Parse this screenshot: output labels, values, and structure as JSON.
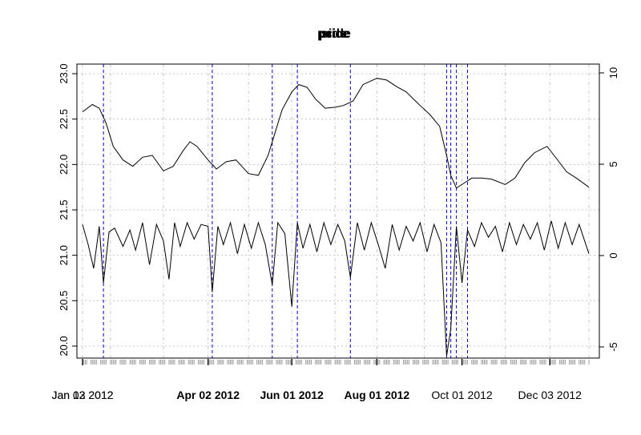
{
  "chart_data": {
    "type": "line",
    "title": "pcide",
    "title_overlap": [
      "price",
      "side"
    ],
    "xlabel": "",
    "ylabel": "",
    "xlim": [
      "2012-01-03",
      "2012-12-31"
    ],
    "ylim_left": [
      20.0,
      23.0
    ],
    "ylim_right": [
      -6.0,
      10.0
    ],
    "y_ticks_left": [
      "20.0",
      "20.5",
      "21.0",
      "21.5",
      "22.0",
      "22.5",
      "23.0"
    ],
    "y_ticks_right": [
      "-5",
      "0",
      "5",
      "10"
    ],
    "grid": true,
    "colors": {
      "series": "#000000",
      "vlines": "#0000cc",
      "grid": "#c8c8c8",
      "minor_ticks": "#a0a0a0"
    },
    "x_tick_labels": [
      {
        "text": "Jan 12 2012",
        "overlap": "Jan 03 2012",
        "date": "2012-01-03",
        "bold": false
      },
      {
        "text": "Apr 02 2012",
        "date": "2012-04-02",
        "bold": true
      },
      {
        "text": "Jun 01 2012",
        "date": "2012-06-01",
        "bold": true
      },
      {
        "text": "Aug 01 2012",
        "date": "2012-08-01",
        "bold": true
      },
      {
        "text": "Oct 01 2012",
        "date": "2012-10-01",
        "bold": false
      },
      {
        "text": "Dec 03 2012",
        "date": "2012-12-03",
        "bold": false
      }
    ],
    "gray_vlines": [
      "2012-01-03",
      "2012-01-23",
      "2012-03-01",
      "2012-04-02",
      "2012-05-01",
      "2012-06-01",
      "2012-07-02",
      "2012-08-01",
      "2012-09-04",
      "2012-10-01",
      "2012-11-01",
      "2012-12-03",
      "2012-12-31"
    ],
    "blue_vlines": [
      "2012-01-18",
      "2012-04-05",
      "2012-05-18",
      "2012-06-05",
      "2012-07-13",
      "2012-09-20",
      "2012-09-23",
      "2012-09-27",
      "2012-10-05"
    ],
    "series": [
      {
        "axis": "left",
        "x": [
          "2012-01-03",
          "2012-01-10",
          "2012-01-15",
          "2012-01-20",
          "2012-01-25",
          "2012-02-01",
          "2012-02-08",
          "2012-02-15",
          "2012-02-22",
          "2012-03-01",
          "2012-03-08",
          "2012-03-15",
          "2012-03-20",
          "2012-03-25",
          "2012-04-02",
          "2012-04-08",
          "2012-04-15",
          "2012-04-22",
          "2012-05-01",
          "2012-05-08",
          "2012-05-15",
          "2012-05-20",
          "2012-05-25",
          "2012-06-01",
          "2012-06-06",
          "2012-06-12",
          "2012-06-18",
          "2012-06-25",
          "2012-07-02",
          "2012-07-08",
          "2012-07-15",
          "2012-07-22",
          "2012-08-01",
          "2012-08-08",
          "2012-08-15",
          "2012-08-22",
          "2012-09-01",
          "2012-09-08",
          "2012-09-15",
          "2012-09-20",
          "2012-09-23",
          "2012-09-27",
          "2012-10-03",
          "2012-10-08",
          "2012-10-15",
          "2012-10-22",
          "2012-11-01",
          "2012-11-08",
          "2012-11-15",
          "2012-11-22",
          "2012-12-01",
          "2012-12-08",
          "2012-12-15",
          "2012-12-22",
          "2012-12-31"
        ],
        "values": [
          22.58,
          22.66,
          22.62,
          22.45,
          22.2,
          22.05,
          21.98,
          22.08,
          22.1,
          21.93,
          21.98,
          22.15,
          22.25,
          22.2,
          22.05,
          21.95,
          22.03,
          22.05,
          21.9,
          21.88,
          22.1,
          22.35,
          22.6,
          22.8,
          22.88,
          22.85,
          22.72,
          22.62,
          22.63,
          22.65,
          22.7,
          22.88,
          22.95,
          22.93,
          22.86,
          22.8,
          22.65,
          22.55,
          22.42,
          22.1,
          21.88,
          21.74,
          21.8,
          21.85,
          21.85,
          21.84,
          21.78,
          21.85,
          22.02,
          22.13,
          22.2,
          22.06,
          21.92,
          21.85,
          21.75
        ]
      },
      {
        "axis": "right",
        "x": [
          "2012-01-03",
          "2012-01-07",
          "2012-01-11",
          "2012-01-15",
          "2012-01-18",
          "2012-01-22",
          "2012-01-26",
          "2012-02-01",
          "2012-02-06",
          "2012-02-10",
          "2012-02-15",
          "2012-02-20",
          "2012-02-25",
          "2012-03-01",
          "2012-03-05",
          "2012-03-09",
          "2012-03-13",
          "2012-03-18",
          "2012-03-23",
          "2012-03-28",
          "2012-04-02",
          "2012-04-05",
          "2012-04-09",
          "2012-04-13",
          "2012-04-18",
          "2012-04-23",
          "2012-04-28",
          "2012-05-03",
          "2012-05-08",
          "2012-05-13",
          "2012-05-18",
          "2012-05-22",
          "2012-05-27",
          "2012-06-01",
          "2012-06-05",
          "2012-06-09",
          "2012-06-14",
          "2012-06-19",
          "2012-06-24",
          "2012-06-29",
          "2012-07-04",
          "2012-07-09",
          "2012-07-13",
          "2012-07-18",
          "2012-07-23",
          "2012-07-28",
          "2012-08-02",
          "2012-08-07",
          "2012-08-12",
          "2012-08-17",
          "2012-08-22",
          "2012-08-27",
          "2012-09-01",
          "2012-09-06",
          "2012-09-11",
          "2012-09-16",
          "2012-09-20",
          "2012-09-23",
          "2012-09-27",
          "2012-10-01",
          "2012-10-05",
          "2012-10-10",
          "2012-10-15",
          "2012-10-20",
          "2012-10-25",
          "2012-10-30",
          "2012-11-04",
          "2012-11-09",
          "2012-11-14",
          "2012-11-19",
          "2012-11-24",
          "2012-11-29",
          "2012-12-04",
          "2012-12-09",
          "2012-12-14",
          "2012-12-19",
          "2012-12-24",
          "2012-12-31"
        ],
        "values": [
          1.7,
          0.6,
          -0.7,
          1.6,
          -1.5,
          1.3,
          1.5,
          0.5,
          1.4,
          0.3,
          1.8,
          -0.5,
          1.7,
          0.8,
          -1.3,
          1.8,
          0.5,
          1.8,
          0.9,
          1.7,
          1.6,
          -2.0,
          1.6,
          0.6,
          1.8,
          0.1,
          1.7,
          0.4,
          1.8,
          0.6,
          -1.6,
          1.8,
          1.2,
          -2.8,
          1.8,
          0.4,
          1.7,
          0.2,
          1.8,
          0.6,
          1.7,
          0.8,
          -1.2,
          1.8,
          0.3,
          1.8,
          0.6,
          -0.7,
          1.7,
          0.3,
          1.6,
          0.8,
          1.8,
          0.2,
          1.7,
          0.7,
          -5.5,
          -4.0,
          1.6,
          -1.5,
          1.4,
          0.5,
          1.8,
          1.0,
          1.6,
          0.2,
          1.8,
          0.6,
          1.7,
          0.9,
          1.8,
          0.3,
          1.9,
          0.4,
          1.8,
          0.6,
          1.7,
          0.1
        ]
      }
    ]
  }
}
